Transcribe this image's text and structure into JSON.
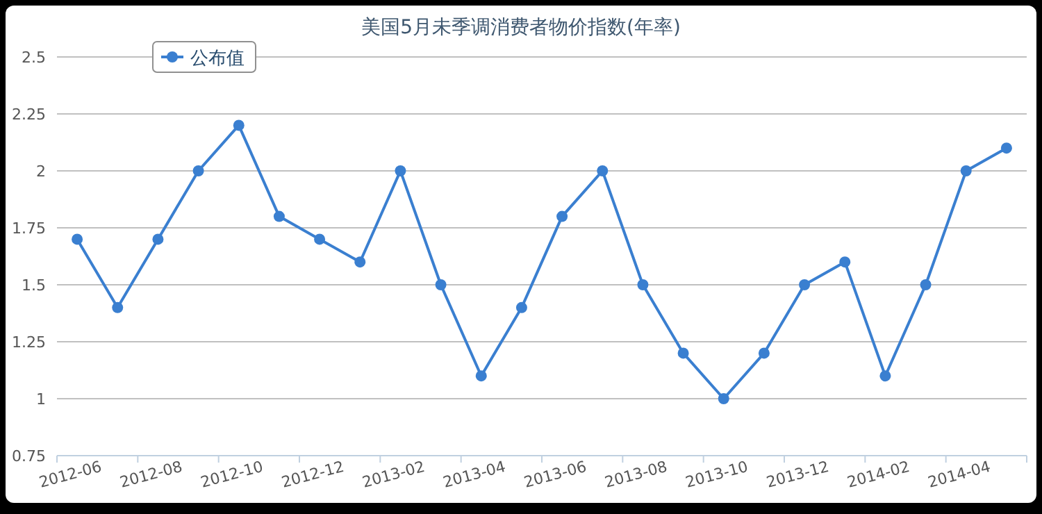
{
  "chart_data": {
    "type": "line",
    "title": "美国5月未季调消费者物价指数(年率)",
    "categories": [
      "2012-06",
      null,
      "2012-08",
      null,
      "2012-10",
      null,
      "2012-12",
      null,
      "2013-02",
      null,
      "2013-04",
      null,
      "2013-06",
      null,
      "2013-08",
      null,
      "2013-10",
      null,
      "2013-12",
      null,
      "2014-02",
      null,
      "2014-04",
      null
    ],
    "series": [
      {
        "name": "公布值",
        "color": "#3a7fd0",
        "values": [
          1.7,
          1.4,
          1.7,
          2.0,
          2.2,
          1.8,
          1.7,
          1.6,
          2.0,
          1.5,
          1.1,
          1.4,
          1.8,
          2.0,
          1.5,
          1.2,
          1.0,
          1.2,
          1.5,
          1.6,
          1.1,
          1.5,
          2.0,
          2.1
        ]
      }
    ],
    "ylim": [
      0.75,
      2.5
    ],
    "yticks": [
      0.75,
      1,
      1.25,
      1.5,
      1.75,
      2,
      2.25,
      2.5
    ],
    "grid": "y",
    "legend": "top left",
    "marker": "circle",
    "line_style": "solid"
  }
}
